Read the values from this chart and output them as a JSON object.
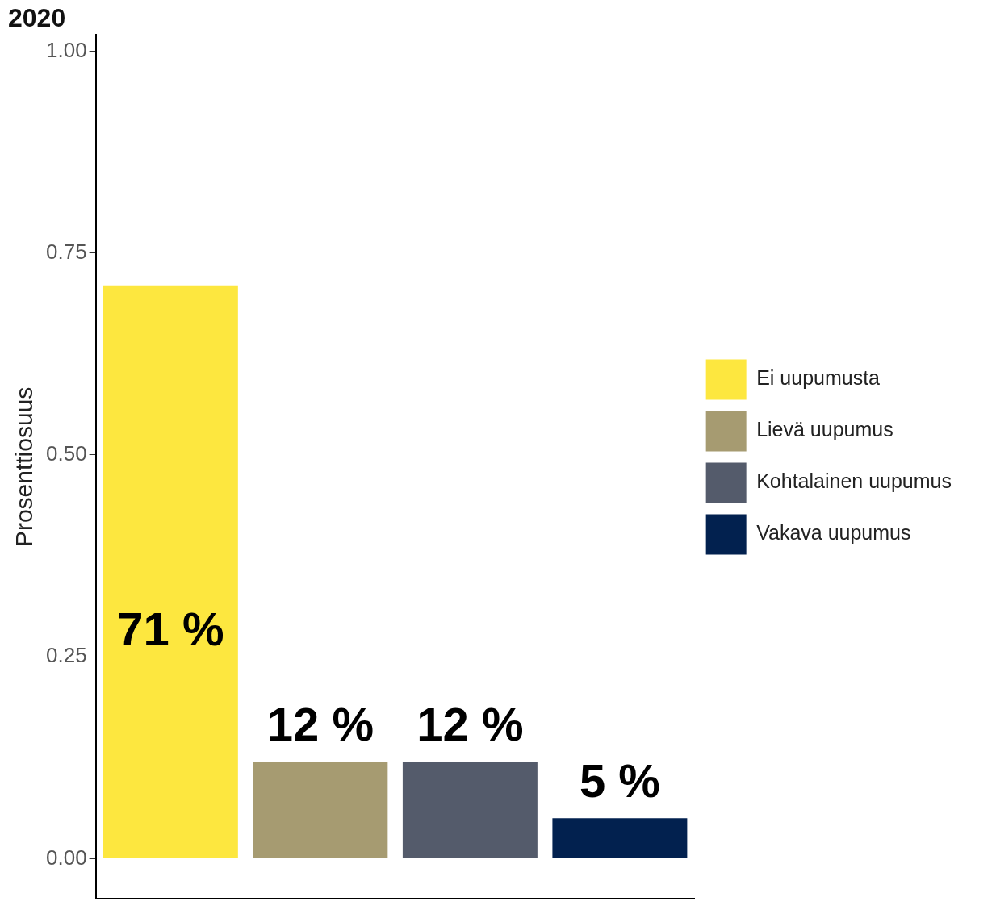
{
  "chart_data": {
    "type": "bar",
    "title": "2020",
    "ylabel": "Prosenttiosuus",
    "categories": [
      null,
      null,
      null,
      null
    ],
    "series": [
      {
        "name": "Ei uupumusta",
        "color": "#fde73f",
        "values": [
          0.71,
          null,
          null,
          null
        ],
        "value_labels": [
          "71 %",
          null,
          null,
          null
        ]
      },
      {
        "name": "Lievä uupumus",
        "color": "#a69b71",
        "values": [
          null,
          0.12,
          null,
          null
        ],
        "value_labels": [
          null,
          "12 %",
          null,
          null
        ]
      },
      {
        "name": "Kohtalainen uupumus",
        "color": "#545b6b",
        "values": [
          null,
          null,
          0.12,
          null
        ],
        "value_labels": [
          null,
          null,
          "12 %",
          null
        ]
      },
      {
        "name": "Vakava uupumus",
        "color": "#02214f",
        "values": [
          null,
          null,
          null,
          0.05
        ],
        "value_labels": [
          null,
          null,
          null,
          "5 %"
        ]
      }
    ],
    "ylim": [
      -0.05,
      1.02
    ],
    "yticks": [
      {
        "value": 0,
        "label": "0.00"
      },
      {
        "value": 0.25,
        "label": "0.25"
      },
      {
        "value": 0.5,
        "label": "0.50"
      },
      {
        "value": 0.75,
        "label": "0.75"
      },
      {
        "value": 1,
        "label": "1.00"
      }
    ],
    "tick_labels": "y",
    "grid": false,
    "legend": "right"
  }
}
